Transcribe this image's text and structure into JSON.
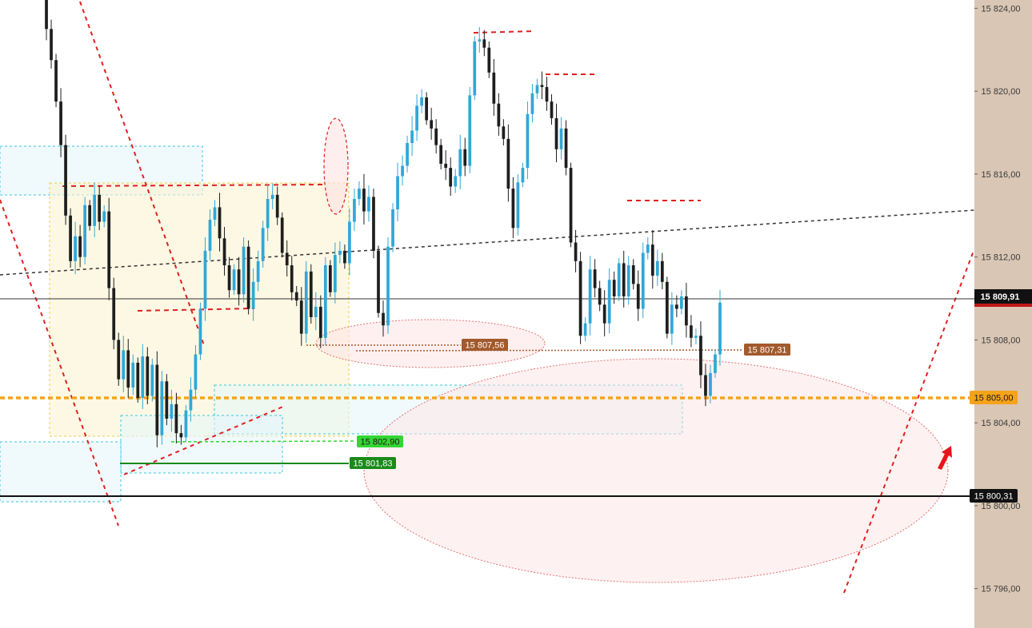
{
  "chart_data": {
    "type": "candlestick",
    "y_axis": {
      "range": [
        15794.1,
        15824.4
      ],
      "ticks": [
        15824,
        15820,
        15816,
        15812,
        15808,
        15804,
        15800,
        15796
      ],
      "tick_labels": [
        "15 824,00",
        "15 820,00",
        "15 816,00",
        "15 812,00",
        "15 808,00",
        "15 804,00",
        "15 800,00",
        "15 796,00"
      ],
      "gridlines": false
    },
    "close_series": [
      15824.5,
      15823,
      15821.5,
      15819.5,
      15817.4,
      15814,
      15811.8,
      15813,
      15812,
      15814.5,
      15813.5,
      15815,
      15813.7,
      15814.2,
      15810.5,
      15808,
      15806.1,
      15807.5,
      15805.7,
      15806.9,
      15805.2,
      15807.2,
      15805.3,
      15806.8,
      15803.4,
      15806,
      15804.2,
      15804.9,
      15803.5,
      15803.3,
      15804.6,
      15805.6,
      15807.3,
      15809.5,
      15812.3,
      15813.8,
      15814.4,
      15812.9,
      15811.6,
      15810.4,
      15811.4,
      15810.2,
      15812.5,
      15809.5,
      15810.8,
      15811.8,
      15813.4,
      15814.8,
      15815,
      15813.9,
      15812.2,
      15811.6,
      15810.3,
      15809.9,
      15808.3,
      15811.3,
      15809.1,
      15809.6,
      15808.1,
      15811.6,
      15810.3,
      15812.1,
      15812.3,
      15811.7,
      15813.7,
      15814.8,
      15815.3,
      15814.2,
      15814.9,
      15812.3,
      15809.3,
      15808.7,
      15812.5,
      15814.3,
      15815.9,
      15816.4,
      15817.5,
      15818.1,
      15819.3,
      15819.7,
      15818.6,
      15818.2,
      15817.4,
      15816.5,
      15816.3,
      15815.4,
      15815.9,
      15817.2,
      15816.4,
      15819.8,
      15822.4,
      15822.5,
      15822.1,
      15820.9,
      15819.4,
      15818.3,
      15817.7,
      15815.3,
      15813.4,
      15815.6,
      15816.3,
      15818.9,
      15819.9,
      15820.3,
      15820.2,
      15819.5,
      15818.7,
      15817.2,
      15818.2,
      15816.3,
      15812.7,
      15811.8,
      15808.2,
      15808.8,
      15811.4,
      15810.5,
      15809.7,
      15808.8,
      15810.9,
      15810.1,
      15811.7,
      15810.1,
      15811.6,
      15810.7,
      15809.5,
      15812.2,
      15812.6,
      15811.1,
      15811.8,
      15810.8,
      15808.3,
      15809.7,
      15809.5,
      15810.1,
      15808.7,
      15808.1,
      15808.2,
      15806.3,
      15805.3,
      15806.4,
      15807.3,
      15809.8
    ],
    "last_price": 15809.91,
    "series": [
      {
        "name": "",
        "note": "blue = rising bar, black = falling bar"
      }
    ]
  },
  "levels": {
    "current_price": {
      "value": 15809.91,
      "label": "15 809,91"
    },
    "orange_level": {
      "value": 15805.0,
      "label": "15 805,00"
    },
    "black_level": {
      "value": 15800.31,
      "label": "15 800,31"
    },
    "brown_low_a": {
      "value": 15807.56,
      "label": "15 807,56"
    },
    "brown_low_b": {
      "value": 15807.31,
      "label": "15 807,31"
    },
    "green_light": {
      "value": 15802.9,
      "label": "15 802,90"
    },
    "green_dark": {
      "value": 15801.83,
      "label": "15 801,83"
    }
  },
  "colors": {
    "bull": "#2fa8d8",
    "bear": "#1e1e1e",
    "axis_panel": "#d9c6b4",
    "orange": "#f5a31a",
    "brown": "#a25a2c",
    "green_light": "#33d633",
    "green_dark": "#1a8a1a",
    "red_dash": "#e02020",
    "ellipse_fill": "#fde3e3",
    "zone_yellow": "#fdf8dc",
    "zone_cyan": "#e4f6fb"
  }
}
